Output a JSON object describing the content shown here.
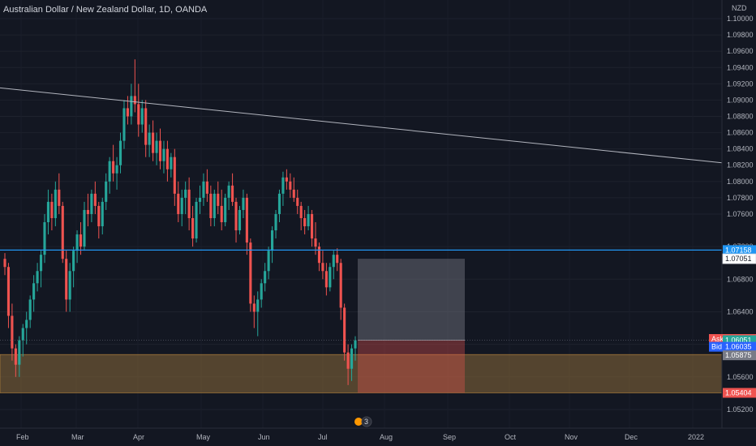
{
  "title": "Australian Dollar / New Zealand Dollar, 1D, OANDA",
  "currency": "NZD",
  "colors": {
    "background": "#131722",
    "up": "#26a69a",
    "down": "#ef5350",
    "trendline": "#b2b5be",
    "level": "#2196f3",
    "zone": "#8a6a3a",
    "ask": "#ef5350",
    "bid": "#2962ff",
    "last": "#26a69a"
  },
  "chart_data": {
    "type": "candlestick",
    "ylim": [
      1.0505,
      1.1003
    ],
    "y_ticks": [
      "1.05200",
      "1.05600",
      "1.06000",
      "1.06400",
      "1.06800",
      "1.07200",
      "1.07600",
      "1.07800",
      "1.08000",
      "1.08200",
      "1.08400",
      "1.08600",
      "1.08800",
      "1.09000",
      "1.09200",
      "1.09400",
      "1.09600",
      "1.09800",
      "1.10000"
    ],
    "x_labels": [
      "Feb",
      "Mar",
      "Apr",
      "May",
      "Jun",
      "Jul",
      "Aug",
      "Sep",
      "Oct",
      "Nov",
      "Dec",
      "2022"
    ],
    "trendline": {
      "from": 1.0915,
      "to": 1.0823
    },
    "horizontal_level": 1.07158,
    "demand_zone": [
      1.05404,
      1.05875
    ],
    "position_box": {
      "target": 1.07051,
      "entry": 1.06051,
      "stop": 1.05404
    },
    "price_tags": {
      "level": "1.07158",
      "target": "1.07051",
      "ask_label": "Ask",
      "ask": "1.06066",
      "last": "1.06051",
      "countdown": "07:02:22",
      "bid_label": "Bid",
      "bid": "1.06035",
      "zone_top": "1.05875",
      "stop": "1.05404"
    },
    "candles": [
      [
        1.0705,
        1.0712,
        1.0685,
        1.0695
      ],
      [
        1.0695,
        1.07,
        1.062,
        1.0635
      ],
      [
        1.0635,
        1.065,
        1.058,
        1.0595
      ],
      [
        1.0595,
        1.06,
        1.056,
        1.0575
      ],
      [
        1.0575,
        1.061,
        1.056,
        1.0605
      ],
      [
        1.0605,
        1.0625,
        1.0585,
        1.062
      ],
      [
        1.062,
        1.064,
        1.06,
        1.063
      ],
      [
        1.063,
        1.066,
        1.062,
        1.0655
      ],
      [
        1.0655,
        1.0685,
        1.064,
        1.0675
      ],
      [
        1.0675,
        1.07,
        1.0665,
        1.069
      ],
      [
        1.069,
        1.0715,
        1.067,
        1.071
      ],
      [
        1.071,
        1.076,
        1.07,
        1.075
      ],
      [
        1.075,
        1.079,
        1.0735,
        1.0775
      ],
      [
        1.0775,
        1.0785,
        1.074,
        1.0755
      ],
      [
        1.0755,
        1.08,
        1.0745,
        1.079
      ],
      [
        1.079,
        1.081,
        1.076,
        1.077
      ],
      [
        1.077,
        1.0775,
        1.07,
        1.0705
      ],
      [
        1.0705,
        1.0715,
        1.064,
        1.0655
      ],
      [
        1.0655,
        1.07,
        1.064,
        1.069
      ],
      [
        1.069,
        1.072,
        1.067,
        1.0715
      ],
      [
        1.0715,
        1.074,
        1.07,
        1.0735
      ],
      [
        1.0735,
        1.075,
        1.071,
        1.072
      ],
      [
        1.072,
        1.0775,
        1.0715,
        1.0765
      ],
      [
        1.0765,
        1.0785,
        1.0745,
        1.076
      ],
      [
        1.076,
        1.079,
        1.075,
        1.0785
      ],
      [
        1.0785,
        1.08,
        1.076,
        1.077
      ],
      [
        1.077,
        1.0775,
        1.073,
        1.0745
      ],
      [
        1.0745,
        1.078,
        1.0735,
        1.0775
      ],
      [
        1.0775,
        1.081,
        1.0765,
        1.08
      ],
      [
        1.08,
        1.083,
        1.0785,
        1.0825
      ],
      [
        1.0825,
        1.0845,
        1.08,
        1.081
      ],
      [
        1.081,
        1.083,
        1.079,
        1.082
      ],
      [
        1.082,
        1.086,
        1.081,
        1.085
      ],
      [
        1.085,
        1.09,
        1.084,
        1.089
      ],
      [
        1.089,
        1.0905,
        1.087,
        1.088
      ],
      [
        1.088,
        1.092,
        1.087,
        1.0905
      ],
      [
        1.0905,
        1.095,
        1.0885,
        1.0895
      ],
      [
        1.0895,
        1.092,
        1.0855,
        1.087
      ],
      [
        1.087,
        1.09,
        1.086,
        1.089
      ],
      [
        1.089,
        1.09,
        1.083,
        1.0845
      ],
      [
        1.0845,
        1.087,
        1.083,
        1.086
      ],
      [
        1.086,
        1.0875,
        1.0825,
        1.0835
      ],
      [
        1.0835,
        1.086,
        1.082,
        1.085
      ],
      [
        1.085,
        1.0865,
        1.0815,
        1.0825
      ],
      [
        1.0825,
        1.085,
        1.081,
        1.084
      ],
      [
        1.084,
        1.085,
        1.08,
        1.0815
      ],
      [
        1.0815,
        1.0835,
        1.0805,
        1.083
      ],
      [
        1.083,
        1.084,
        1.077,
        1.0785
      ],
      [
        1.0785,
        1.08,
        1.075,
        1.076
      ],
      [
        1.076,
        1.079,
        1.0745,
        1.078
      ],
      [
        1.078,
        1.08,
        1.076,
        1.079
      ],
      [
        1.079,
        1.0805,
        1.074,
        1.0755
      ],
      [
        1.0755,
        1.077,
        1.072,
        1.073
      ],
      [
        1.073,
        1.078,
        1.0725,
        1.0775
      ],
      [
        1.0775,
        1.0795,
        1.076,
        1.078
      ],
      [
        1.078,
        1.081,
        1.077,
        1.08
      ],
      [
        1.08,
        1.0815,
        1.0775,
        1.0785
      ],
      [
        1.0785,
        1.0795,
        1.0745,
        1.0755
      ],
      [
        1.0755,
        1.079,
        1.0745,
        1.0785
      ],
      [
        1.0785,
        1.08,
        1.076,
        1.077
      ],
      [
        1.077,
        1.079,
        1.074,
        1.075
      ],
      [
        1.075,
        1.0785,
        1.0745,
        1.078
      ],
      [
        1.078,
        1.08,
        1.0765,
        1.0795
      ],
      [
        1.0795,
        1.081,
        1.077,
        1.0775
      ],
      [
        1.0775,
        1.078,
        1.0725,
        1.074
      ],
      [
        1.074,
        1.077,
        1.0735,
        1.0765
      ],
      [
        1.0765,
        1.079,
        1.0755,
        1.078
      ],
      [
        1.078,
        1.0785,
        1.071,
        1.0725
      ],
      [
        1.0725,
        1.073,
        1.064,
        1.065
      ],
      [
        1.065,
        1.066,
        1.062,
        1.064
      ],
      [
        1.064,
        1.0665,
        1.061,
        1.0655
      ],
      [
        1.0655,
        1.068,
        1.0645,
        1.0675
      ],
      [
        1.0675,
        1.07,
        1.0665,
        1.069
      ],
      [
        1.069,
        1.072,
        1.068,
        1.0715
      ],
      [
        1.0715,
        1.0745,
        1.07,
        1.074
      ],
      [
        1.074,
        1.0765,
        1.073,
        1.076
      ],
      [
        1.076,
        1.079,
        1.075,
        1.0785
      ],
      [
        1.0785,
        1.0812,
        1.077,
        1.0805
      ],
      [
        1.0805,
        1.0815,
        1.079,
        1.08
      ],
      [
        1.08,
        1.081,
        1.078,
        1.079
      ],
      [
        1.079,
        1.0805,
        1.0775,
        1.078
      ],
      [
        1.078,
        1.079,
        1.076,
        1.077
      ],
      [
        1.077,
        1.0775,
        1.074,
        1.0755
      ],
      [
        1.0755,
        1.0765,
        1.0735,
        1.0745
      ],
      [
        1.0745,
        1.077,
        1.074,
        1.076
      ],
      [
        1.076,
        1.0765,
        1.072,
        1.073
      ],
      [
        1.073,
        1.075,
        1.071,
        1.072
      ],
      [
        1.072,
        1.0725,
        1.069,
        1.07
      ],
      [
        1.07,
        1.0715,
        1.068,
        1.069
      ],
      [
        1.069,
        1.07,
        1.066,
        1.067
      ],
      [
        1.067,
        1.07,
        1.0665,
        1.0695
      ],
      [
        1.0695,
        1.0715,
        1.068,
        1.071
      ],
      [
        1.071,
        1.0718,
        1.069,
        1.07
      ],
      [
        1.07,
        1.0705,
        1.063,
        1.0645
      ],
      [
        1.0645,
        1.065,
        1.058,
        1.059
      ],
      [
        1.059,
        1.06,
        1.055,
        1.057
      ],
      [
        1.057,
        1.06,
        1.0555,
        1.0595
      ],
      [
        1.0595,
        1.061,
        1.058,
        1.0605
      ]
    ]
  },
  "time_marker": "3"
}
